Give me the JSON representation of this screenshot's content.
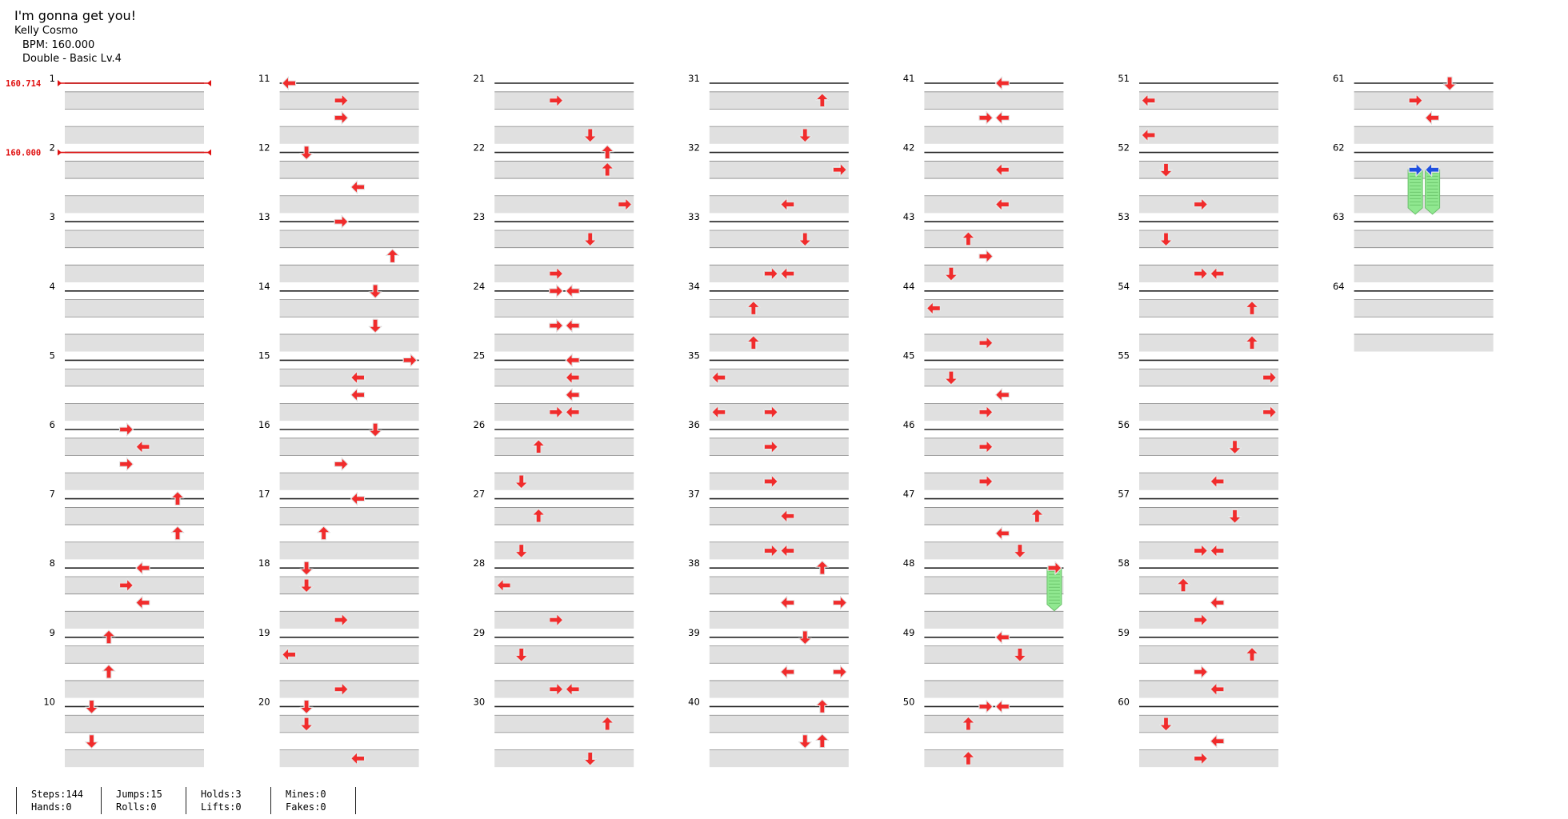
{
  "header": {
    "title": "I'm gonna get you!",
    "artist": "Kelly Cosmo",
    "bpm": "BPM: 160.000",
    "chart": "Double - Basic  Lv.4"
  },
  "bpm_changes": [
    {
      "measure": 1,
      "label": "160.714"
    },
    {
      "measure": 2,
      "label": "160.000"
    }
  ],
  "stats": [
    {
      "top": "Steps:144",
      "bottom": "Hands:0"
    },
    {
      "top": "Jumps:15",
      "bottom": "Rolls:0"
    },
    {
      "top": "Holds:3",
      "bottom": "Lifts:0"
    },
    {
      "top": "Mines:0",
      "bottom": "Fakes:0"
    }
  ],
  "colors": {
    "note": "#f02c2c",
    "blue_note": "#2050e0",
    "hold_body": "#90e890",
    "row_band": "#e0e0e0",
    "bpm": "#e01010"
  },
  "chart_data": {
    "type": "table",
    "measures": 64,
    "columns": 7,
    "measures_per_column": 10,
    "lanes": 8,
    "lane_directions": [
      "left",
      "down",
      "up",
      "right",
      "left",
      "down",
      "up",
      "right"
    ],
    "notes": [
      {
        "m": 6,
        "b": 0,
        "lane": 3
      },
      {
        "m": 6,
        "b": 1,
        "lane": 4
      },
      {
        "m": 6,
        "b": 2,
        "lane": 3
      },
      {
        "m": 7,
        "b": 0,
        "lane": 6
      },
      {
        "m": 7,
        "b": 2,
        "lane": 6
      },
      {
        "m": 8,
        "b": 0,
        "lane": 4
      },
      {
        "m": 8,
        "b": 1,
        "lane": 3
      },
      {
        "m": 8,
        "b": 2,
        "lane": 4
      },
      {
        "m": 9,
        "b": 0,
        "lane": 2
      },
      {
        "m": 9,
        "b": 2,
        "lane": 2
      },
      {
        "m": 10,
        "b": 0,
        "lane": 1
      },
      {
        "m": 10,
        "b": 2,
        "lane": 1
      },
      {
        "m": 11,
        "b": 0,
        "lane": 0
      },
      {
        "m": 11,
        "b": 1,
        "lane": 3
      },
      {
        "m": 11,
        "b": 2,
        "lane": 3
      },
      {
        "m": 12,
        "b": 0,
        "lane": 1
      },
      {
        "m": 12,
        "b": 2,
        "lane": 4
      },
      {
        "m": 13,
        "b": 0,
        "lane": 3
      },
      {
        "m": 13,
        "b": 2,
        "lane": 6
      },
      {
        "m": 14,
        "b": 0,
        "lane": 5
      },
      {
        "m": 14,
        "b": 2,
        "lane": 5
      },
      {
        "m": 15,
        "b": 0,
        "lane": 7
      },
      {
        "m": 15,
        "b": 1,
        "lane": 4
      },
      {
        "m": 15,
        "b": 2,
        "lane": 4
      },
      {
        "m": 16,
        "b": 0,
        "lane": 5
      },
      {
        "m": 16,
        "b": 2,
        "lane": 3
      },
      {
        "m": 17,
        "b": 0,
        "lane": 4
      },
      {
        "m": 17,
        "b": 2,
        "lane": 2
      },
      {
        "m": 18,
        "b": 0,
        "lane": 1
      },
      {
        "m": 18,
        "b": 1,
        "lane": 1
      },
      {
        "m": 18,
        "b": 3,
        "lane": 3
      },
      {
        "m": 19,
        "b": 1,
        "lane": 0
      },
      {
        "m": 19,
        "b": 3,
        "lane": 3
      },
      {
        "m": 20,
        "b": 0,
        "lane": 1
      },
      {
        "m": 20,
        "b": 1,
        "lane": 1
      },
      {
        "m": 20,
        "b": 3,
        "lane": 4
      },
      {
        "m": 21,
        "b": 1,
        "lane": 3
      },
      {
        "m": 22,
        "b": -1,
        "lane": 5
      },
      {
        "m": 22,
        "b": 0,
        "lane": 6
      },
      {
        "m": 22,
        "b": 1,
        "lane": 6
      },
      {
        "m": 23,
        "b": -1,
        "lane": 7
      },
      {
        "m": 23,
        "b": 1,
        "lane": 5
      },
      {
        "m": 24,
        "b": -1,
        "lane": 3
      },
      {
        "m": 24,
        "b": 0,
        "lane": 3
      },
      {
        "m": 24,
        "b": 0,
        "lane": 4
      },
      {
        "m": 24,
        "b": 2,
        "lane": 3
      },
      {
        "m": 24,
        "b": 2,
        "lane": 4
      },
      {
        "m": 25,
        "b": 0,
        "lane": 4
      },
      {
        "m": 25,
        "b": 1,
        "lane": 4
      },
      {
        "m": 25,
        "b": 2,
        "lane": 4
      },
      {
        "m": 25,
        "b": 3,
        "lane": 3
      },
      {
        "m": 25,
        "b": 3,
        "lane": 4
      },
      {
        "m": 26,
        "b": 1,
        "lane": 2
      },
      {
        "m": 26,
        "b": 3,
        "lane": 1
      },
      {
        "m": 27,
        "b": 1,
        "lane": 2
      },
      {
        "m": 27,
        "b": 3,
        "lane": 1
      },
      {
        "m": 28,
        "b": 1,
        "lane": 0
      },
      {
        "m": 28,
        "b": 3,
        "lane": 3
      },
      {
        "m": 29,
        "b": 1,
        "lane": 1
      },
      {
        "m": 29,
        "b": 3,
        "lane": 3
      },
      {
        "m": 29,
        "b": 3,
        "lane": 4
      },
      {
        "m": 30,
        "b": 1,
        "lane": 6
      },
      {
        "m": 30,
        "b": 3,
        "lane": 5
      },
      {
        "m": 31,
        "b": 1,
        "lane": 6
      },
      {
        "m": 31,
        "b": 3,
        "lane": 5
      },
      {
        "m": 32,
        "b": 1,
        "lane": 7
      },
      {
        "m": 32,
        "b": 3,
        "lane": 4
      },
      {
        "m": 33,
        "b": 1,
        "lane": 5
      },
      {
        "m": 33,
        "b": 3,
        "lane": 3
      },
      {
        "m": 33,
        "b": 3,
        "lane": 4
      },
      {
        "m": 34,
        "b": 1,
        "lane": 2
      },
      {
        "m": 34,
        "b": 3,
        "lane": 2
      },
      {
        "m": 35,
        "b": 1,
        "lane": 0
      },
      {
        "m": 35,
        "b": 3,
        "lane": 0
      },
      {
        "m": 35,
        "b": 3,
        "lane": 3
      },
      {
        "m": 36,
        "b": 1,
        "lane": 3
      },
      {
        "m": 36,
        "b": 3,
        "lane": 3
      },
      {
        "m": 37,
        "b": 1,
        "lane": 4
      },
      {
        "m": 37,
        "b": 3,
        "lane": 3
      },
      {
        "m": 37,
        "b": 3,
        "lane": 4
      },
      {
        "m": 38,
        "b": 0,
        "lane": 6
      },
      {
        "m": 38,
        "b": 2,
        "lane": 4
      },
      {
        "m": 38,
        "b": 2,
        "lane": 7
      },
      {
        "m": 39,
        "b": 0,
        "lane": 5
      },
      {
        "m": 39,
        "b": 2,
        "lane": 4
      },
      {
        "m": 39,
        "b": 2,
        "lane": 7
      },
      {
        "m": 40,
        "b": 0,
        "lane": 6
      },
      {
        "m": 40,
        "b": 2,
        "lane": 5
      },
      {
        "m": 40,
        "b": 2,
        "lane": 6
      },
      {
        "m": 41,
        "b": 0,
        "lane": 4
      },
      {
        "m": 41,
        "b": 2,
        "lane": 3
      },
      {
        "m": 41,
        "b": 2,
        "lane": 4
      },
      {
        "m": 42,
        "b": 1,
        "lane": 4
      },
      {
        "m": 42,
        "b": 3,
        "lane": 4
      },
      {
        "m": 43,
        "b": 1,
        "lane": 2
      },
      {
        "m": 43,
        "b": 2,
        "lane": 3
      },
      {
        "m": 43,
        "b": 3,
        "lane": 1
      },
      {
        "m": 44,
        "b": 1,
        "lane": 0
      },
      {
        "m": 44,
        "b": 3,
        "lane": 3
      },
      {
        "m": 45,
        "b": 1,
        "lane": 1
      },
      {
        "m": 45,
        "b": 2,
        "lane": 4
      },
      {
        "m": 45,
        "b": 3,
        "lane": 3
      },
      {
        "m": 46,
        "b": 1,
        "lane": 3
      },
      {
        "m": 46,
        "b": 3,
        "lane": 3
      },
      {
        "m": 47,
        "b": 1,
        "lane": 6
      },
      {
        "m": 47,
        "b": 2,
        "lane": 4
      },
      {
        "m": 47,
        "b": 3,
        "lane": 5
      },
      {
        "m": 49,
        "b": 0,
        "lane": 4
      },
      {
        "m": 49,
        "b": 1,
        "lane": 5
      },
      {
        "m": 50,
        "b": 0,
        "lane": 3
      },
      {
        "m": 50,
        "b": 0,
        "lane": 4
      },
      {
        "m": 50,
        "b": 1,
        "lane": 2
      },
      {
        "m": 50,
        "b": 3,
        "lane": 2
      },
      {
        "m": 51,
        "b": 1,
        "lane": 0
      },
      {
        "m": 51,
        "b": 3,
        "lane": 0
      },
      {
        "m": 52,
        "b": 1,
        "lane": 1
      },
      {
        "m": 52,
        "b": 3,
        "lane": 3
      },
      {
        "m": 53,
        "b": 1,
        "lane": 1
      },
      {
        "m": 53,
        "b": 3,
        "lane": 3
      },
      {
        "m": 53,
        "b": 3,
        "lane": 4
      },
      {
        "m": 54,
        "b": 1,
        "lane": 6
      },
      {
        "m": 54,
        "b": 3,
        "lane": 6
      },
      {
        "m": 55,
        "b": 1,
        "lane": 7
      },
      {
        "m": 55,
        "b": 3,
        "lane": 7
      },
      {
        "m": 56,
        "b": 1,
        "lane": 5
      },
      {
        "m": 56,
        "b": 3,
        "lane": 4
      },
      {
        "m": 57,
        "b": 1,
        "lane": 5
      },
      {
        "m": 57,
        "b": 3,
        "lane": 3
      },
      {
        "m": 57,
        "b": 3,
        "lane": 4
      },
      {
        "m": 58,
        "b": 1,
        "lane": 2
      },
      {
        "m": 58,
        "b": 2,
        "lane": 4
      },
      {
        "m": 58,
        "b": 3,
        "lane": 3
      },
      {
        "m": 59,
        "b": 1,
        "lane": 6
      },
      {
        "m": 59,
        "b": 2,
        "lane": 3
      },
      {
        "m": 59,
        "b": 3,
        "lane": 4
      },
      {
        "m": 60,
        "b": 1,
        "lane": 1
      },
      {
        "m": 60,
        "b": 2,
        "lane": 4
      },
      {
        "m": 60,
        "b": 3,
        "lane": 3
      },
      {
        "m": 61,
        "b": 0,
        "lane": 5
      },
      {
        "m": 61,
        "b": 1,
        "lane": 3
      },
      {
        "m": 61,
        "b": 2,
        "lane": 4
      }
    ],
    "holds": [
      {
        "m": 48,
        "b": 0,
        "lane": 7,
        "end_m": 48,
        "end_b": 2.1
      },
      {
        "m": 62,
        "b": 1,
        "lane": 3,
        "end_m": 62,
        "end_b": 3.2,
        "color": "blue"
      },
      {
        "m": 62,
        "b": 1,
        "lane": 4,
        "end_m": 62,
        "end_b": 3.2,
        "color": "blue"
      }
    ]
  }
}
